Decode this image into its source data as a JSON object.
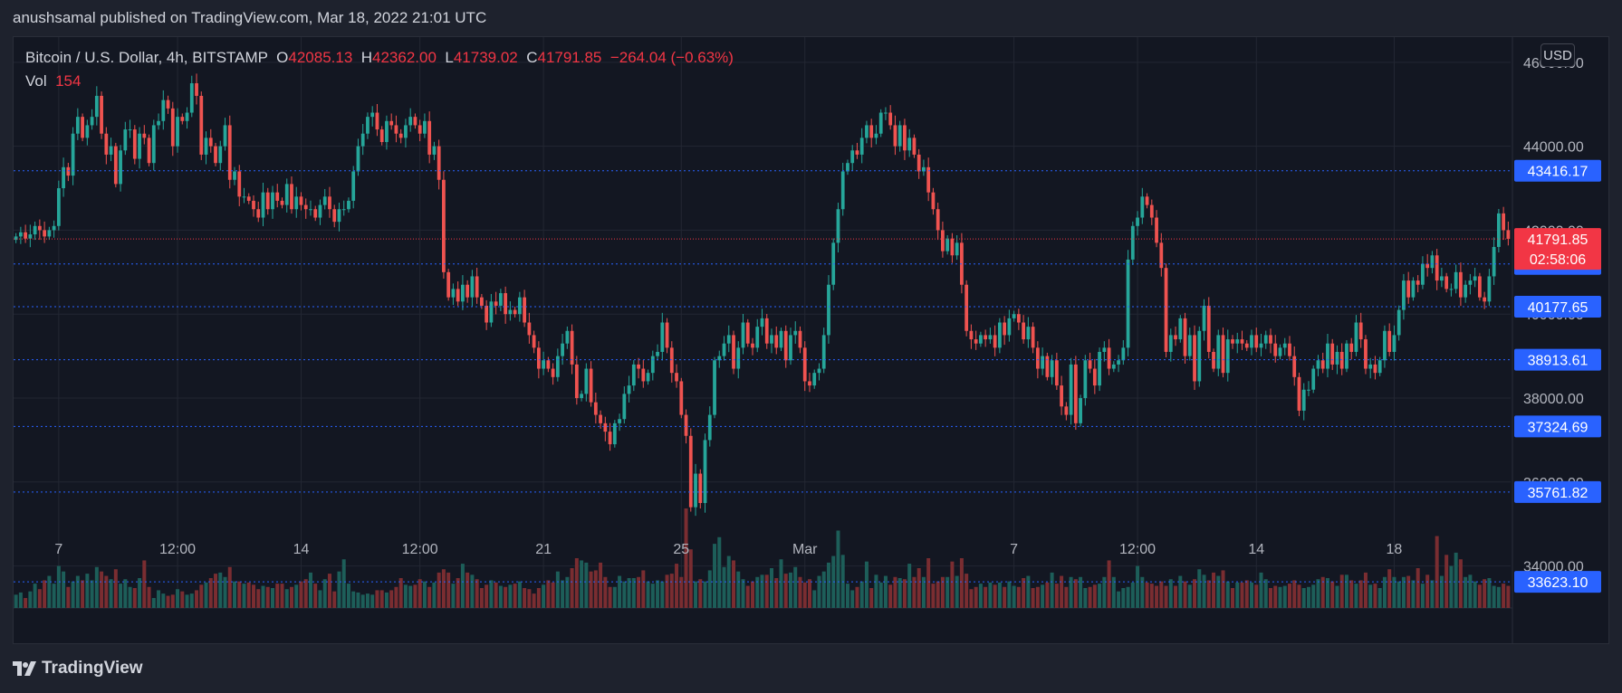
{
  "publisher": "anushsamal published on TradingView.com, Mar 18, 2022 21:01 UTC",
  "legend": {
    "symbol": "Bitcoin / U.S. Dollar, 4h, BITSTAMP",
    "o_label": "O",
    "o": "42085.13",
    "h_label": "H",
    "h": "42362.00",
    "l_label": "L",
    "l": "41739.02",
    "c_label": "C",
    "c": "41791.85",
    "change": "−264.04 (−0.63%)",
    "vol_label": "Vol",
    "vol": "154"
  },
  "currency_button": "USD",
  "footer_brand": "TradingView",
  "colors": {
    "up": "#26a69a",
    "down": "#ef5350",
    "background": "#131722",
    "grid": "#232733",
    "level_line": "#2962ff",
    "level_label": "#2962ff",
    "current": "#f23645"
  },
  "chart_data": {
    "type": "candlestick",
    "ylim": [
      33000,
      46600
    ],
    "y_ticks": [
      "46000.00",
      "44000.00",
      "42000.00",
      "40000.00",
      "38000.00",
      "36000.00",
      "34000.00"
    ],
    "y_tick_values": [
      46000,
      44000,
      42000,
      40000,
      38000,
      36000,
      34000
    ],
    "x_ticks": [
      "7",
      "12:00",
      "14",
      "12:00",
      "21",
      "25",
      "Mar",
      "7",
      "12:00",
      "14",
      "18"
    ],
    "x_tick_index": [
      9,
      34,
      60,
      85,
      111,
      140,
      166,
      210,
      236,
      261,
      290
    ],
    "levels": [
      "43416.17",
      "41196.70",
      "40177.65",
      "38913.61",
      "37324.69",
      "35761.82",
      "33623.10"
    ],
    "level_values": [
      43416.17,
      41196.7,
      40177.65,
      38913.61,
      37324.69,
      35761.82,
      33623.1
    ],
    "current_price": "41791.85",
    "current_value": 41791.85,
    "countdown": "02:58:06",
    "closes": [
      41850,
      41950,
      41800,
      41900,
      42100,
      42000,
      41850,
      42000,
      42100,
      43000,
      43500,
      43300,
      44300,
      44700,
      44200,
      44500,
      44700,
      45200,
      44300,
      43800,
      44000,
      43100,
      43900,
      44400,
      44400,
      43700,
      44300,
      44200,
      43600,
      44500,
      44600,
      45100,
      44900,
      44000,
      44700,
      44600,
      44800,
      45500,
      45200,
      43800,
      44200,
      44000,
      43600,
      44000,
      44500,
      43200,
      43400,
      42800,
      42800,
      42700,
      42500,
      42300,
      42900,
      42500,
      42900,
      42700,
      42600,
      43100,
      42500,
      42800,
      42600,
      42500,
      42500,
      42300,
      42600,
      42800,
      42500,
      42200,
      42500,
      42500,
      42700,
      43400,
      44000,
      44300,
      44700,
      44800,
      44400,
      44100,
      44600,
      44500,
      44300,
      44200,
      44500,
      44700,
      44500,
      44300,
      44600,
      43800,
      44000,
      43200,
      41000,
      40400,
      40600,
      40300,
      40700,
      40400,
      40900,
      40400,
      40200,
      39800,
      40300,
      40200,
      40500,
      40000,
      40100,
      40000,
      40400,
      39800,
      39500,
      39200,
      38700,
      38900,
      38700,
      38500,
      39000,
      39300,
      39600,
      38800,
      38000,
      38100,
      38700,
      37900,
      37600,
      37400,
      37200,
      36900,
      37400,
      37500,
      38100,
      38300,
      38800,
      38700,
      38400,
      38600,
      39000,
      39100,
      39800,
      39200,
      38600,
      38400,
      37600,
      37100,
      35400,
      36200,
      35500,
      37000,
      37600,
      38900,
      39000,
      39300,
      39500,
      38700,
      39200,
      39800,
      39300,
      39200,
      39700,
      39900,
      39300,
      39500,
      39200,
      39600,
      38900,
      39500,
      39600,
      39200,
      38400,
      38300,
      38600,
      38700,
      39500,
      40700,
      41700,
      42500,
      43400,
      43600,
      43900,
      43800,
      44200,
      44500,
      44200,
      44300,
      44800,
      44800,
      44500,
      44000,
      44500,
      43900,
      44200,
      43800,
      43400,
      43500,
      42900,
      42500,
      42000,
      41500,
      41800,
      41400,
      41700,
      40700,
      39600,
      39400,
      39300,
      39500,
      39400,
      39500,
      39200,
      39800,
      39500,
      39900,
      40000,
      39800,
      39400,
      39700,
      39200,
      38700,
      39000,
      38500,
      38900,
      38300,
      37800,
      37600,
      38800,
      37400,
      38000,
      38900,
      38700,
      38300,
      39100,
      39200,
      38700,
      38800,
      38900,
      39200,
      41300,
      42100,
      42300,
      42800,
      42600,
      42300,
      41700,
      41100,
      39100,
      39500,
      39400,
      39900,
      39000,
      39500,
      38400,
      39600,
      40200,
      39100,
      38700,
      39500,
      38600,
      39400,
      39300,
      39400,
      39300,
      39200,
      39500,
      39200,
      39300,
      39500,
      39300,
      39000,
      39200,
      39300,
      39000,
      38500,
      37700,
      38200,
      38200,
      38700,
      38900,
      38700,
      39300,
      38800,
      39100,
      38700,
      39300,
      39100,
      39800,
      39400,
      38700,
      38800,
      38600,
      38900,
      39600,
      39100,
      39500,
      40100,
      40800,
      40400,
      40800,
      40700,
      41200,
      41100,
      41400,
      40800,
      40900,
      40600,
      40600,
      41000,
      40400,
      40700,
      40800,
      40900,
      40400,
      40300,
      40900,
      41600,
      42400,
      42000,
      41791.85
    ],
    "volumes": [
      12,
      14,
      9,
      15,
      22,
      17,
      25,
      29,
      22,
      38,
      33,
      19,
      24,
      29,
      25,
      31,
      25,
      37,
      33,
      29,
      26,
      35,
      22,
      26,
      19,
      18,
      27,
      43,
      19,
      9,
      16,
      13,
      11,
      12,
      17,
      15,
      12,
      13,
      16,
      21,
      23,
      27,
      31,
      32,
      28,
      37,
      24,
      24,
      22,
      23,
      21,
      17,
      20,
      19,
      18,
      22,
      22,
      17,
      19,
      21,
      24,
      26,
      32,
      22,
      16,
      26,
      31,
      15,
      33,
      44,
      22,
      15,
      14,
      12,
      13,
      12,
      16,
      16,
      14,
      16,
      19,
      27,
      21,
      20,
      21,
      26,
      24,
      19,
      23,
      32,
      35,
      32,
      22,
      27,
      40,
      32,
      30,
      26,
      18,
      21,
      25,
      23,
      20,
      19,
      21,
      22,
      24,
      18,
      17,
      13,
      18,
      21,
      25,
      23,
      33,
      25,
      28,
      36,
      45,
      43,
      41,
      33,
      34,
      41,
      28,
      19,
      19,
      29,
      24,
      27,
      27,
      28,
      34,
      24,
      22,
      25,
      24,
      30,
      31,
      40,
      28,
      90,
      53,
      24,
      26,
      24,
      34,
      58,
      64,
      37,
      47,
      43,
      33,
      26,
      20,
      24,
      28,
      30,
      30,
      36,
      27,
      44,
      31,
      32,
      37,
      28,
      23,
      26,
      16,
      29,
      33,
      41,
      47,
      70,
      48,
      22,
      16,
      19,
      24,
      42,
      18,
      30,
      23,
      29,
      21,
      28,
      27,
      26,
      40,
      28,
      36,
      28,
      45,
      22,
      24,
      28,
      28,
      42,
      29,
      45,
      31,
      17,
      19,
      22,
      19,
      23,
      21,
      23,
      19,
      24,
      20,
      19,
      27,
      29,
      18,
      19,
      21,
      23,
      32,
      22,
      29,
      19,
      28,
      26,
      28,
      18,
      19,
      21,
      22,
      28,
      43,
      28,
      15,
      18,
      19,
      23,
      38,
      28,
      23,
      22,
      20,
      24,
      20,
      26,
      20,
      29,
      24,
      21,
      26,
      35,
      30,
      25,
      32,
      29,
      34,
      24,
      18,
      23,
      23,
      25,
      23,
      21,
      32,
      26,
      18,
      20,
      19,
      20,
      22,
      25,
      21,
      18,
      19,
      21,
      26,
      28,
      27,
      24,
      20,
      30,
      30,
      25,
      22,
      25,
      32,
      21,
      22,
      18,
      28,
      35,
      28,
      24,
      28,
      29,
      25,
      36,
      22,
      30,
      25,
      65,
      29,
      48,
      38,
      50,
      44,
      28,
      30,
      24,
      21,
      26,
      27,
      20,
      19,
      22,
      20,
      25,
      41,
      46,
      18
    ]
  }
}
